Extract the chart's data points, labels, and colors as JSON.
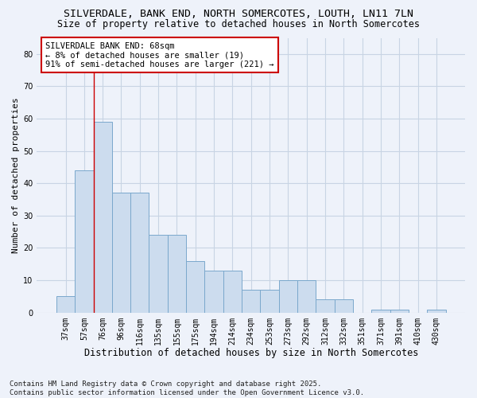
{
  "title": "SILVERDALE, BANK END, NORTH SOMERCOTES, LOUTH, LN11 7LN",
  "subtitle": "Size of property relative to detached houses in North Somercotes",
  "xlabel": "Distribution of detached houses by size in North Somercotes",
  "ylabel": "Number of detached properties",
  "categories": [
    "37sqm",
    "57sqm",
    "76sqm",
    "96sqm",
    "116sqm",
    "135sqm",
    "155sqm",
    "175sqm",
    "194sqm",
    "214sqm",
    "234sqm",
    "253sqm",
    "273sqm",
    "292sqm",
    "312sqm",
    "332sqm",
    "351sqm",
    "371sqm",
    "391sqm",
    "410sqm",
    "430sqm"
  ],
  "values": [
    5,
    44,
    59,
    37,
    37,
    24,
    24,
    16,
    13,
    13,
    7,
    7,
    10,
    10,
    4,
    4,
    0,
    1,
    1,
    0,
    1
  ],
  "bar_color": "#ccdcee",
  "bar_edge_color": "#7aa8cc",
  "grid_color": "#c8d4e4",
  "background_color": "#eef2fa",
  "red_line_x": 1.5,
  "annotation_text": "SILVERDALE BANK END: 68sqm\n← 8% of detached houses are smaller (19)\n91% of semi-detached houses are larger (221) →",
  "annotation_box_facecolor": "#ffffff",
  "annotation_box_edgecolor": "#cc0000",
  "ylim": [
    0,
    85
  ],
  "yticks": [
    0,
    10,
    20,
    30,
    40,
    50,
    60,
    70,
    80
  ],
  "footer": "Contains HM Land Registry data © Crown copyright and database right 2025.\nContains public sector information licensed under the Open Government Licence v3.0.",
  "title_fontsize": 9.5,
  "subtitle_fontsize": 8.5,
  "xlabel_fontsize": 8.5,
  "ylabel_fontsize": 8,
  "tick_fontsize": 7,
  "annotation_fontsize": 7.5,
  "footer_fontsize": 6.5
}
